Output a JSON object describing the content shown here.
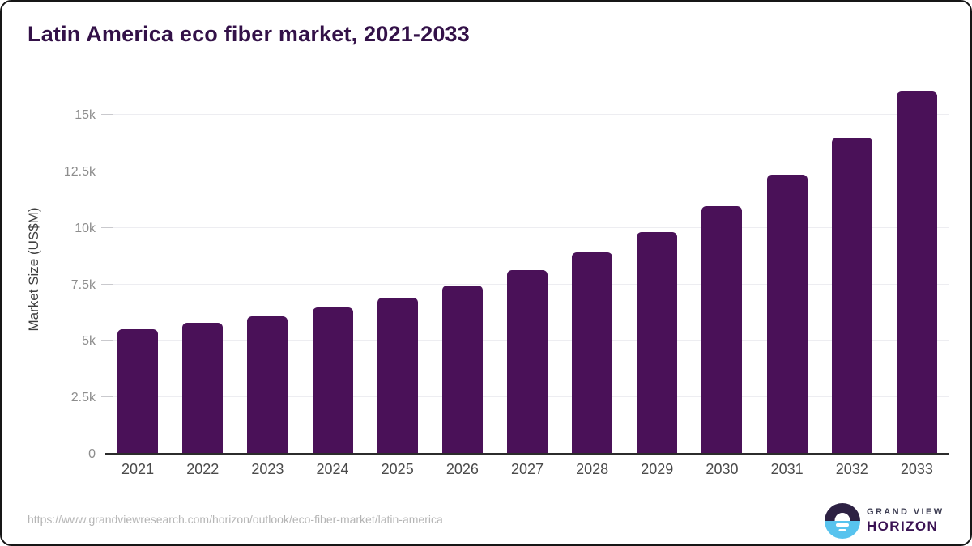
{
  "chart_data": {
    "type": "bar",
    "title": "Latin America eco fiber market, 2021-2033",
    "xlabel": "",
    "ylabel": "Market Size (US$M)",
    "categories": [
      "2021",
      "2022",
      "2023",
      "2024",
      "2025",
      "2026",
      "2027",
      "2028",
      "2029",
      "2030",
      "2031",
      "2032",
      "2033"
    ],
    "values": [
      5500,
      5800,
      6100,
      6480,
      6900,
      7450,
      8120,
      8930,
      9820,
      10950,
      12350,
      14000,
      16050
    ],
    "ylim": [
      0,
      16300
    ],
    "ytick_step": 2500,
    "yticks": [
      {
        "value": 0,
        "label": "0"
      },
      {
        "value": 2500,
        "label": "2.5k"
      },
      {
        "value": 5000,
        "label": "5k"
      },
      {
        "value": 7500,
        "label": "7.5k"
      },
      {
        "value": 10000,
        "label": "10k"
      },
      {
        "value": 12500,
        "label": "12.5k"
      },
      {
        "value": 15000,
        "label": "15k"
      }
    ],
    "grid": true,
    "legend": false,
    "bar_color": "#4a1158"
  },
  "footer": {
    "source_url": "https://www.grandviewresearch.com/horizon/outlook/eco-fiber-market/latin-america",
    "logo": {
      "line1": "GRAND VIEW",
      "line2": "HORIZON",
      "icon": "sunrise-horizon-icon",
      "icon_top_color": "#2d2143",
      "icon_bottom_color": "#58c3ee"
    }
  },
  "colors": {
    "title": "#331148",
    "bar": "#4a1158",
    "gridline": "#ededf1",
    "axis_line": "#2c2c2c",
    "y_label": "#8d8d8d",
    "x_label": "#4a4a4a",
    "url": "#b5b5b5"
  }
}
